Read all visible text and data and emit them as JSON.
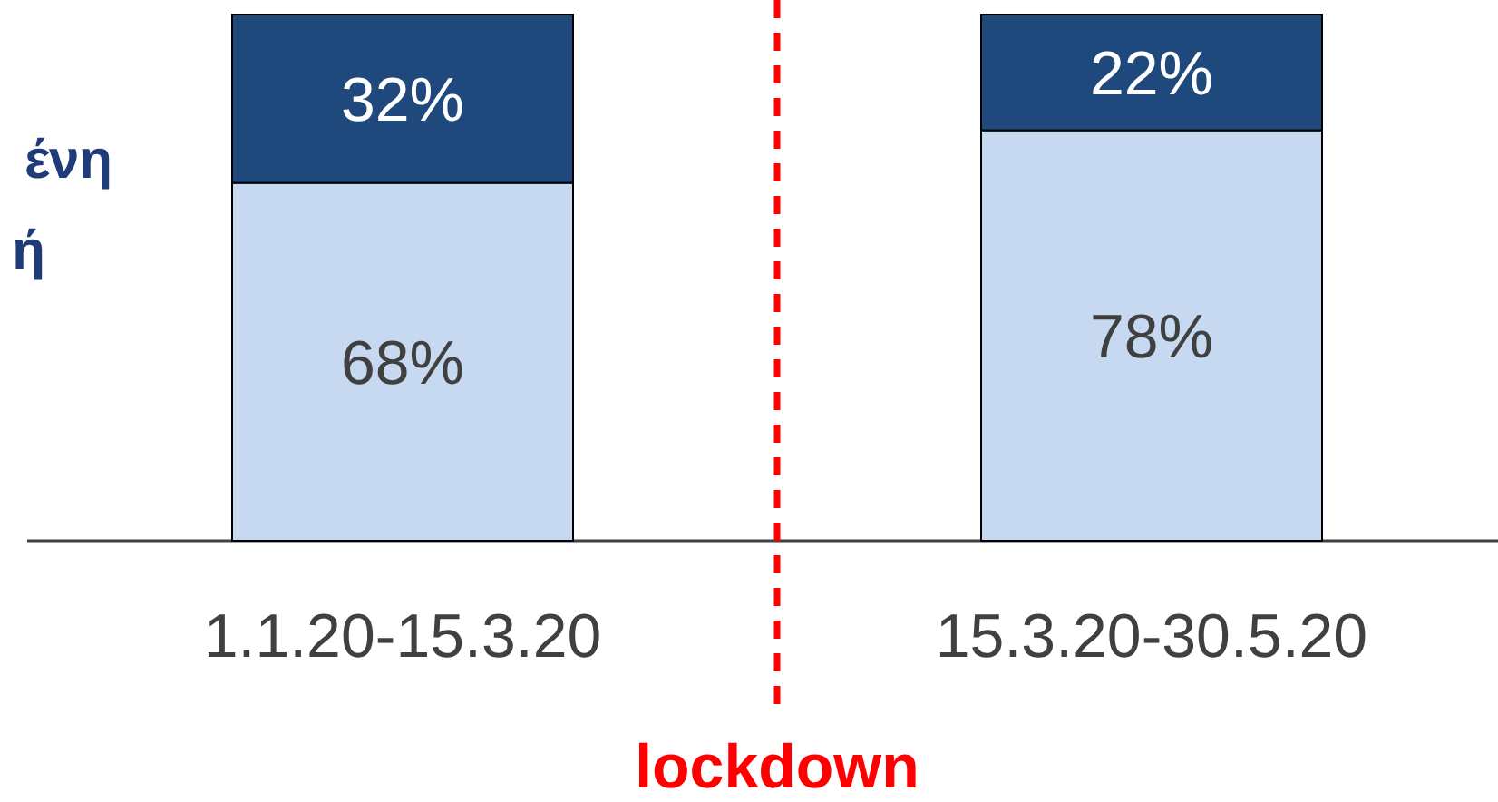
{
  "chart_data": {
    "type": "bar",
    "stacked": true,
    "categories": [
      "1.1.20-15.3.20",
      "15.3.20-30.5.20"
    ],
    "series": [
      {
        "color": "#c6d9f0",
        "values": [
          68,
          78
        ],
        "value_labels": [
          "68%",
          "78%"
        ]
      },
      {
        "color": "#1f497d",
        "values": [
          32,
          22
        ],
        "value_labels": [
          "32%",
          "22%"
        ]
      }
    ],
    "annotations": [
      "lockdown",
      "ένη",
      "ή"
    ]
  }
}
